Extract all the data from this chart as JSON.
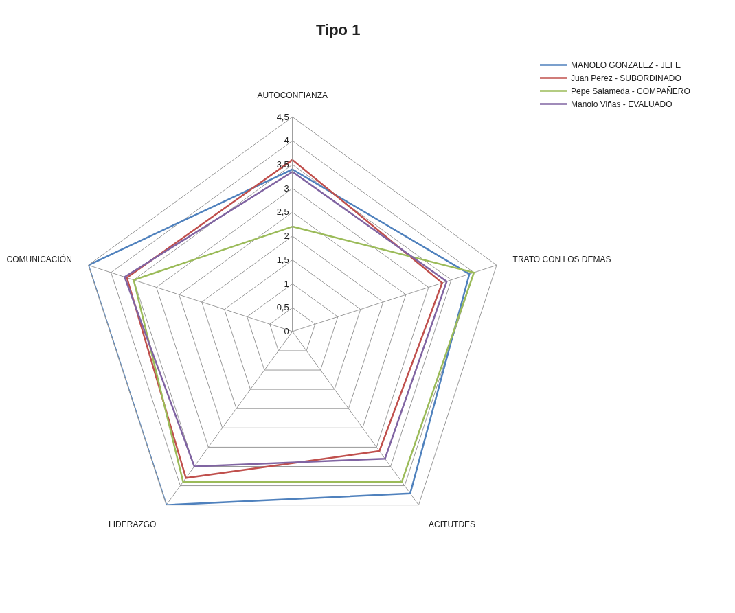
{
  "chart_data": {
    "type": "radar",
    "title": "Tipo 1",
    "categories": [
      "AUTOCONFIANZA",
      "TRATO CON LOS DEMAS",
      "ACITUTDES",
      "LIDERAZGO",
      "COMUNICACIÓN"
    ],
    "series": [
      {
        "name": "MANOLO GONZALEZ - JEFE",
        "color": "#4f81bd",
        "values": [
          3.4,
          3.9,
          4.2,
          4.5,
          4.5
        ]
      },
      {
        "name": "Juan Perez - SUBORDINADO",
        "color": "#c0504d",
        "values": [
          3.6,
          3.3,
          3.1,
          3.8,
          3.65
        ]
      },
      {
        "name": "Pepe Salameda - COMPAÑERO",
        "color": "#9bbb59",
        "values": [
          2.2,
          4.0,
          3.9,
          3.9,
          3.5
        ]
      },
      {
        "name": "Manolo Viñas - EVALUADO",
        "color": "#8064a2",
        "values": [
          3.35,
          3.4,
          3.3,
          3.5,
          3.7
        ]
      }
    ],
    "ylim": [
      0,
      4.5
    ],
    "yticks": [
      0,
      {
        "value": 0.5,
        "label": "0,5"
      },
      1,
      {
        "value": 1.5,
        "label": "1,5"
      },
      2,
      {
        "value": 2.5,
        "label": "2,5"
      },
      3,
      {
        "value": 3.5,
        "label": "3,5"
      },
      4,
      {
        "value": 4.5,
        "label": "4,5"
      }
    ],
    "grid": true,
    "legend": "top right",
    "marker": "none"
  }
}
